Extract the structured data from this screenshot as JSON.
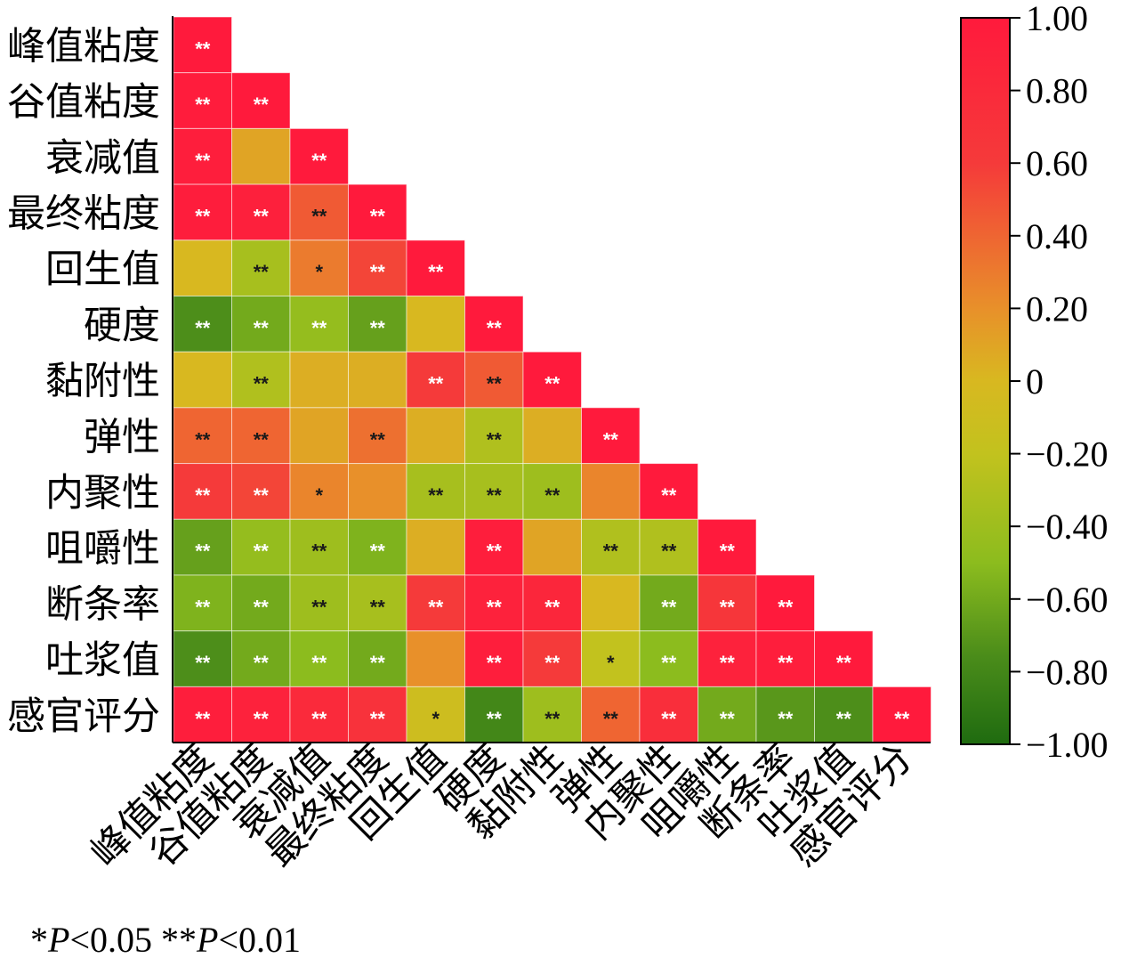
{
  "chart_data": {
    "type": "heatmap",
    "variables": [
      "峰值粘度",
      "谷值粘度",
      "衰减值",
      "最终粘度",
      "回生值",
      "硬度",
      "黏附性",
      "弹性",
      "内聚性",
      "咀嚼性",
      "断条率",
      "吐浆值",
      "感官评分"
    ],
    "matrix": [
      [
        1.0
      ],
      [
        0.98,
        1.0
      ],
      [
        0.95,
        0.1,
        1.0
      ],
      [
        0.96,
        0.92,
        0.45,
        1.0
      ],
      [
        0.0,
        -0.35,
        0.3,
        0.55,
        1.0
      ],
      [
        -0.75,
        -0.6,
        -0.45,
        -0.65,
        0.0,
        1.0
      ],
      [
        0.0,
        -0.3,
        0.05,
        0.05,
        0.6,
        0.45,
        1.0
      ],
      [
        0.4,
        0.4,
        0.1,
        0.35,
        0.05,
        -0.3,
        0.05,
        1.0
      ],
      [
        0.6,
        0.55,
        0.25,
        0.2,
        -0.35,
        -0.35,
        -0.4,
        0.25,
        1.0
      ],
      [
        -0.65,
        -0.45,
        -0.4,
        -0.55,
        0.05,
        0.95,
        0.1,
        -0.3,
        -0.3,
        1.0
      ],
      [
        -0.55,
        -0.6,
        -0.4,
        -0.35,
        0.6,
        0.9,
        0.85,
        0.0,
        -0.6,
        0.65,
        1.0
      ],
      [
        -0.75,
        -0.6,
        -0.5,
        -0.6,
        0.2,
        0.95,
        0.6,
        -0.2,
        -0.5,
        0.9,
        0.95,
        1.0
      ],
      [
        0.95,
        0.9,
        0.8,
        0.7,
        -0.1,
        -0.8,
        -0.4,
        0.4,
        0.75,
        -0.6,
        -0.7,
        -0.75,
        1.0
      ]
    ],
    "significance": [
      [
        "**"
      ],
      [
        "**",
        "**"
      ],
      [
        "**",
        "",
        "**"
      ],
      [
        "**",
        "**",
        "**",
        "**"
      ],
      [
        "",
        "**",
        "*",
        "**",
        "**"
      ],
      [
        "**",
        "**",
        "**",
        "**",
        "",
        "**"
      ],
      [
        "",
        "**",
        "",
        "",
        "**",
        "**",
        "**"
      ],
      [
        "**",
        "**",
        "",
        "**",
        "",
        "**",
        "",
        "**"
      ],
      [
        "**",
        "**",
        "*",
        "",
        "**",
        "**",
        "**",
        "",
        "**"
      ],
      [
        "**",
        "**",
        "**",
        "**",
        "",
        "**",
        "",
        "**",
        "**",
        "**"
      ],
      [
        "**",
        "**",
        "**",
        "**",
        "**",
        "**",
        "**",
        "",
        "**",
        "**",
        "**"
      ],
      [
        "**",
        "**",
        "**",
        "**",
        "",
        "**",
        "**",
        "*",
        "**",
        "**",
        "**",
        "**"
      ],
      [
        "**",
        "**",
        "**",
        "**",
        "*",
        "**",
        "**",
        "**",
        "**",
        "**",
        "**",
        "**",
        "**"
      ]
    ],
    "colorbar": {
      "range": [
        -1.0,
        1.0
      ],
      "ticks": [
        "1.00",
        "0.80",
        "0.60",
        "0.40",
        "0.20",
        "0",
        "−0.20",
        "−0.40",
        "−0.60",
        "−0.80",
        "−1.00"
      ],
      "colors": {
        "high": "#ff1a3c",
        "mid": "#d8b820",
        "low": "#1f6b10"
      }
    },
    "footnote": {
      "p1": "*",
      "v1": "P",
      "t1": "<0.05 ",
      "p2": "**",
      "v2": "P",
      "t2": "<0.01"
    }
  }
}
